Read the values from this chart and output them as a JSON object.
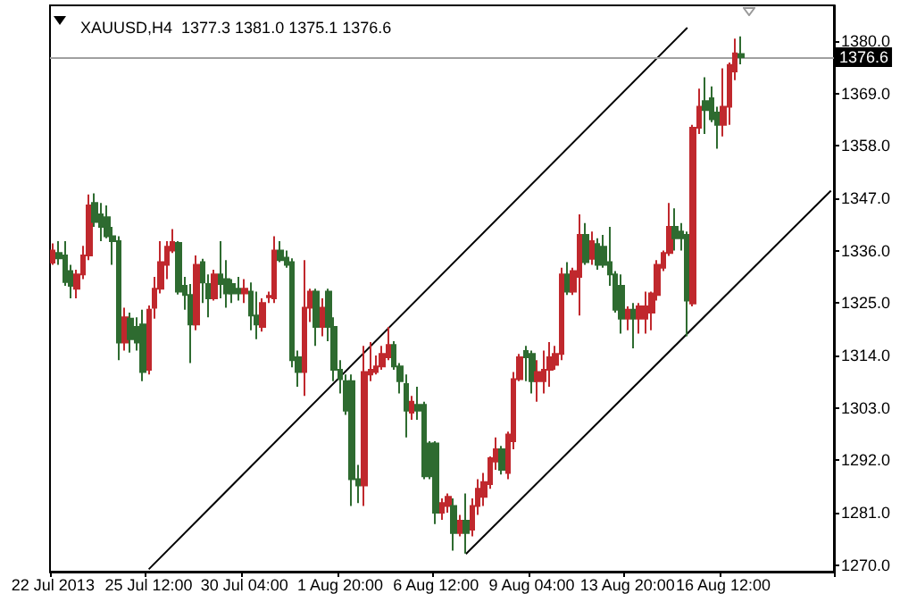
{
  "chart_data": {
    "type": "candlestick",
    "title": "XAUUSD,H4  1377.3 1381.0 1375.1 1376.6",
    "categories": [
      "22 Jul 2013",
      null,
      null,
      null,
      null,
      null,
      null,
      null,
      null,
      null,
      null,
      null,
      null,
      null,
      null,
      null,
      "25 Jul 12:00",
      null,
      null,
      null,
      null,
      null,
      null,
      null,
      null,
      null,
      null,
      null,
      null,
      null,
      null,
      null,
      "30 Jul 04:00",
      null,
      null,
      null,
      null,
      null,
      null,
      null,
      null,
      null,
      null,
      null,
      null,
      null,
      null,
      null,
      "1 Aug 20:00",
      null,
      null,
      null,
      null,
      null,
      null,
      null,
      null,
      null,
      null,
      null,
      null,
      null,
      null,
      null,
      "6 Aug 12:00",
      null,
      null,
      null,
      null,
      null,
      null,
      null,
      null,
      null,
      null,
      null,
      null,
      null,
      null,
      null,
      "9 Aug 04:00",
      null,
      null,
      null,
      null,
      null,
      null,
      null,
      null,
      null,
      null,
      null,
      null,
      null,
      null,
      null,
      "13 Aug 20:00",
      null,
      null,
      null,
      null,
      null,
      null,
      null,
      null,
      null,
      null,
      null,
      null,
      null,
      null,
      null,
      "16 Aug 12:00",
      null,
      null,
      null,
      null,
      null,
      null,
      null,
      null,
      null,
      null,
      null,
      null,
      null,
      null,
      null,
      null,
      null,
      null
    ],
    "ohlc": [
      [
        1333.5,
        1337.5,
        1333,
        1336
      ],
      [
        1335.5,
        1338,
        1333,
        1334.4
      ],
      [
        1335,
        1338,
        1328.6,
        1329.4
      ],
      [
        1331.7,
        1333,
        1326,
        1328.6
      ],
      [
        1328,
        1332,
        1326,
        1331
      ],
      [
        1331,
        1337,
        1330,
        1335
      ],
      [
        1335,
        1347.8,
        1334,
        1345.5
      ],
      [
        1346,
        1348,
        1341,
        1342
      ],
      [
        1343.6,
        1346,
        1338,
        1341
      ],
      [
        1343,
        1345.5,
        1338.6,
        1339
      ],
      [
        1339,
        1341,
        1333,
        1338
      ],
      [
        1338,
        1339,
        1313,
        1316.7
      ],
      [
        1316.7,
        1324,
        1315,
        1322
      ],
      [
        1321.7,
        1323,
        1314.6,
        1317.4
      ],
      [
        1320,
        1322,
        1315,
        1316.7
      ],
      [
        1320.5,
        1323.6,
        1308.6,
        1310.5
      ],
      [
        1311,
        1324.5,
        1310,
        1323.6
      ],
      [
        1324,
        1330.5,
        1321.7,
        1328
      ],
      [
        1328,
        1338,
        1327,
        1333.6
      ],
      [
        1333,
        1338,
        1330,
        1336.8
      ],
      [
        1336,
        1340.5,
        1335.5,
        1337.8
      ],
      [
        1337.6,
        1338,
        1326.8,
        1327.4
      ],
      [
        1328.6,
        1330.5,
        1323.6,
        1326.7
      ],
      [
        1326.7,
        1329,
        1312.4,
        1320.5
      ],
      [
        1320.5,
        1335,
        1319.3,
        1333
      ],
      [
        1333.6,
        1334.3,
        1325,
        1329.3
      ],
      [
        1329,
        1331,
        1322,
        1326
      ],
      [
        1326,
        1332,
        1325.5,
        1331
      ],
      [
        1331,
        1338,
        1326,
        1329
      ],
      [
        1330,
        1334,
        1324,
        1327
      ],
      [
        1329,
        1330,
        1325,
        1327
      ],
      [
        1328,
        1330.5,
        1325.5,
        1327
      ],
      [
        1327,
        1330,
        1325,
        1328
      ],
      [
        1327.4,
        1329.3,
        1319.3,
        1322.4
      ],
      [
        1322.4,
        1327.4,
        1317.4,
        1320.5
      ],
      [
        1320,
        1326,
        1319,
        1325
      ],
      [
        1326.2,
        1327.4,
        1325,
        1326.5
      ],
      [
        1326,
        1339,
        1325,
        1336
      ],
      [
        1336,
        1338,
        1333.6,
        1334
      ],
      [
        1334.5,
        1336,
        1332.4,
        1333
      ],
      [
        1333.6,
        1334.4,
        1311.5,
        1313
      ],
      [
        1313.6,
        1315,
        1307.4,
        1310.5
      ],
      [
        1310.5,
        1334,
        1305.5,
        1324
      ],
      [
        1324,
        1328,
        1321,
        1327.4
      ],
      [
        1327.4,
        1328,
        1316,
        1320
      ],
      [
        1320,
        1326,
        1318,
        1324
      ],
      [
        1327.4,
        1328,
        1317,
        1320
      ],
      [
        1320,
        1322,
        1308.6,
        1311
      ],
      [
        1311,
        1313,
        1306,
        1309
      ],
      [
        1308.6,
        1310,
        1301.5,
        1302.4
      ],
      [
        1308.6,
        1310,
        1282.4,
        1288
      ],
      [
        1288,
        1291,
        1283,
        1286.7
      ],
      [
        1286.7,
        1316,
        1282.4,
        1310.5
      ],
      [
        1310,
        1316.8,
        1308.6,
        1311
      ],
      [
        1310.5,
        1314,
        1310,
        1311.7
      ],
      [
        1311.7,
        1316,
        1311,
        1314.3
      ],
      [
        1313.6,
        1320,
        1313,
        1316.2
      ],
      [
        1316.2,
        1317,
        1311,
        1311.7
      ],
      [
        1311.7,
        1312.4,
        1306,
        1308.6
      ],
      [
        1308,
        1310,
        1296.8,
        1302.4
      ],
      [
        1302,
        1305.5,
        1300.5,
        1304.3
      ],
      [
        1303.6,
        1307.4,
        1300.5,
        1302.4
      ],
      [
        1303.6,
        1304.3,
        1288,
        1288.6
      ],
      [
        1295.5,
        1296,
        1288,
        1288.6
      ],
      [
        1295.5,
        1296,
        1278.6,
        1281
      ],
      [
        1281,
        1284,
        1279.5,
        1283
      ],
      [
        1282.4,
        1285,
        1281,
        1284.3
      ],
      [
        1282.4,
        1284,
        1273,
        1276.7
      ],
      [
        1276.7,
        1280.5,
        1276,
        1279.3
      ],
      [
        1279.3,
        1285,
        1272.4,
        1276.7
      ],
      [
        1277.4,
        1284,
        1276,
        1282.4
      ],
      [
        1282.4,
        1288,
        1280.5,
        1286
      ],
      [
        1284.3,
        1289.3,
        1282.4,
        1287.4
      ],
      [
        1287,
        1292.8,
        1286,
        1292.4
      ],
      [
        1291.7,
        1296.8,
        1290,
        1294.3
      ],
      [
        1294.3,
        1295,
        1289,
        1290
      ],
      [
        1289.3,
        1298,
        1288,
        1297.4
      ],
      [
        1296,
        1310.5,
        1294.3,
        1309
      ],
      [
        1309,
        1314.3,
        1308.6,
        1313.6
      ],
      [
        1314.9,
        1316,
        1308.6,
        1313.6
      ],
      [
        1314.3,
        1315,
        1306,
        1308.6
      ],
      [
        1308.6,
        1313,
        1304.3,
        1310.5
      ],
      [
        1308.6,
        1315,
        1306,
        1311
      ],
      [
        1311,
        1316.8,
        1307.4,
        1313.6
      ],
      [
        1312,
        1316,
        1311,
        1314.3
      ],
      [
        1314.3,
        1332.4,
        1313,
        1331
      ],
      [
        1331,
        1333.6,
        1326.7,
        1327.4
      ],
      [
        1327.4,
        1332.4,
        1326.7,
        1331.7
      ],
      [
        1330.5,
        1343.6,
        1322.4,
        1339.3
      ],
      [
        1339.3,
        1341.8,
        1333,
        1333.6
      ],
      [
        1334.3,
        1340,
        1333,
        1338
      ],
      [
        1337.4,
        1338.6,
        1332,
        1333
      ],
      [
        1336.8,
        1339.3,
        1332.4,
        1333
      ],
      [
        1333.6,
        1341,
        1328.6,
        1331
      ],
      [
        1331,
        1331.7,
        1323,
        1323.6
      ],
      [
        1328.6,
        1331,
        1318.6,
        1321.7
      ],
      [
        1321.7,
        1324.3,
        1319.3,
        1323.6
      ],
      [
        1323.6,
        1325,
        1315.5,
        1321.7
      ],
      [
        1321.7,
        1325,
        1318.6,
        1324.3
      ],
      [
        1321.7,
        1327.4,
        1318.6,
        1324.3
      ],
      [
        1323,
        1327.4,
        1319.3,
        1327
      ],
      [
        1326.7,
        1334,
        1325.5,
        1333
      ],
      [
        1332.4,
        1336,
        1331.7,
        1335.5
      ],
      [
        1335.5,
        1346,
        1334.9,
        1341
      ],
      [
        1341,
        1344.9,
        1336,
        1338.6
      ],
      [
        1340,
        1341.8,
        1336,
        1338.6
      ],
      [
        1339.3,
        1340,
        1318,
        1325.5
      ],
      [
        1324.9,
        1362.4,
        1324.3,
        1361.8
      ],
      [
        1361.8,
        1370,
        1360.5,
        1366.2
      ],
      [
        1367.4,
        1372.4,
        1360.5,
        1365.5
      ],
      [
        1368,
        1370.5,
        1363,
        1363.6
      ],
      [
        1365,
        1366.2,
        1357.4,
        1362.4
      ],
      [
        1362.4,
        1374.3,
        1360,
        1366.2
      ],
      [
        1366.2,
        1375.5,
        1362.4,
        1375
      ],
      [
        1373.6,
        1380.5,
        1371.8,
        1377.4
      ],
      [
        1377.3,
        1381,
        1375.1,
        1376.6
      ],
      null,
      null,
      null,
      null,
      null,
      null,
      null,
      null,
      null,
      null,
      null,
      null,
      null,
      null,
      null
    ],
    "colors": [
      "#c0282d",
      "#2e6b30",
      "#2e6b30",
      "#2e6b30",
      "#c0282d",
      "#c0282d",
      "#c0282d",
      "#2e6b30",
      "#2e6b30",
      "#2e6b30",
      "#2e6b30",
      "#2e6b30",
      "#c0282d",
      "#2e6b30",
      "#2e6b30",
      "#2e6b30",
      "#c0282d",
      "#c0282d",
      "#c0282d",
      "#c0282d",
      "#c0282d",
      "#2e6b30",
      "#2e6b30",
      "#2e6b30",
      "#c0282d",
      "#2e6b30",
      "#2e6b30",
      "#c0282d",
      "#2e6b30",
      "#2e6b30",
      "#2e6b30",
      "#2e6b30",
      "#c0282d",
      "#2e6b30",
      "#2e6b30",
      "#c0282d",
      "#c0282d",
      "#c0282d",
      "#2e6b30",
      "#2e6b30",
      "#2e6b30",
      "#2e6b30",
      "#c0282d",
      "#c0282d",
      "#2e6b30",
      "#c0282d",
      "#2e6b30",
      "#2e6b30",
      "#2e6b30",
      "#2e6b30",
      "#2e6b30",
      "#2e6b30",
      "#c0282d",
      "#c0282d",
      "#c0282d",
      "#c0282d",
      "#c0282d",
      "#2e6b30",
      "#2e6b30",
      "#2e6b30",
      "#c0282d",
      "#2e6b30",
      "#2e6b30",
      "#2e6b30",
      "#2e6b30",
      "#c0282d",
      "#c0282d",
      "#2e6b30",
      "#c0282d",
      "#2e6b30",
      "#c0282d",
      "#c0282d",
      "#c0282d",
      "#c0282d",
      "#c0282d",
      "#2e6b30",
      "#c0282d",
      "#c0282d",
      "#c0282d",
      "#2e6b30",
      "#2e6b30",
      "#c0282d",
      "#c0282d",
      "#c0282d",
      "#c0282d",
      "#c0282d",
      "#2e6b30",
      "#c0282d",
      "#c0282d",
      "#2e6b30",
      "#c0282d",
      "#2e6b30",
      "#2e6b30",
      "#2e6b30",
      "#2e6b30",
      "#2e6b30",
      "#c0282d",
      "#2e6b30",
      "#c0282d",
      "#c0282d",
      "#c0282d",
      "#c0282d",
      "#c0282d",
      "#c0282d",
      "#2e6b30",
      "#2e6b30",
      "#2e6b30",
      "#c0282d",
      "#c0282d",
      "#2e6b30",
      "#2e6b30",
      "#2e6b30",
      "#c0282d",
      "#c0282d",
      "#c0282d",
      "#2e6b30",
      null,
      null,
      null,
      null,
      null,
      null,
      null,
      null,
      null,
      null,
      null,
      null,
      null,
      null,
      null
    ],
    "series": [
      {
        "type": "line",
        "color": "#000000",
        "values": [
          null,
          null,
          null,
          null,
          null,
          null,
          null,
          null,
          null,
          null,
          null,
          null,
          null,
          null,
          null,
          null,
          1269.1,
          null,
          null,
          null,
          null,
          null,
          null,
          null,
          null,
          null,
          null,
          null,
          null,
          null,
          null,
          null,
          null,
          null,
          null,
          null,
          null,
          null,
          null,
          null,
          null,
          null,
          null,
          null,
          null,
          null,
          null,
          null,
          null,
          null,
          null,
          null,
          null,
          null,
          null,
          null,
          null,
          null,
          null,
          null,
          null,
          null,
          null,
          null,
          null,
          null,
          null,
          null,
          null,
          null,
          null,
          null,
          null,
          null,
          null,
          null,
          null,
          null,
          null,
          null,
          null,
          null,
          null,
          null,
          null,
          null,
          null,
          null,
          null,
          null,
          null,
          null,
          null,
          null,
          null,
          null,
          null,
          null,
          null,
          null,
          null,
          null,
          null,
          null,
          null,
          null,
          1382.8,
          null,
          null,
          null,
          null,
          null,
          null,
          null,
          null,
          null,
          null,
          null,
          null,
          null,
          null,
          null,
          null,
          null,
          null,
          null,
          null,
          null,
          null,
          null,
          null
        ]
      },
      {
        "type": "line",
        "color": "#000000",
        "values": [
          null,
          null,
          null,
          null,
          null,
          null,
          null,
          null,
          null,
          null,
          null,
          null,
          null,
          null,
          null,
          null,
          null,
          null,
          null,
          null,
          null,
          null,
          null,
          null,
          null,
          null,
          null,
          null,
          null,
          null,
          null,
          null,
          null,
          null,
          null,
          null,
          null,
          null,
          null,
          null,
          null,
          null,
          null,
          null,
          null,
          null,
          null,
          null,
          null,
          null,
          null,
          null,
          null,
          null,
          null,
          null,
          null,
          null,
          null,
          null,
          null,
          null,
          null,
          null,
          null,
          null,
          null,
          null,
          null,
          1272.3,
          null,
          null,
          null,
          null,
          null,
          null,
          null,
          null,
          null,
          null,
          null,
          null,
          null,
          null,
          null,
          null,
          null,
          null,
          null,
          null,
          null,
          null,
          null,
          null,
          null,
          null,
          null,
          null,
          null,
          null,
          null,
          null,
          null,
          null,
          null,
          null,
          null,
          null,
          null,
          null,
          null,
          null,
          null,
          null,
          null,
          null,
          null,
          null,
          null,
          null,
          null,
          null,
          null,
          null,
          null,
          null,
          null,
          null,
          null,
          null,
          1348.6
        ]
      }
    ],
    "ylim": [
      1268.6,
      1387.5
    ],
    "yticks": [
      {
        "value": 1270,
        "label": "1270.0"
      },
      {
        "value": 1281,
        "label": "1281.0"
      },
      {
        "value": 1292,
        "label": "1292.0"
      },
      {
        "value": 1303,
        "label": "1303.0"
      },
      {
        "value": 1314,
        "label": "1314.0"
      },
      {
        "value": 1325,
        "label": "1325.0"
      },
      {
        "value": 1336,
        "label": "1336.0"
      },
      {
        "value": 1347,
        "label": "1347.0"
      },
      {
        "value": 1358,
        "label": "1358.0"
      },
      {
        "value": 1369,
        "label": "1369.0"
      },
      {
        "value": 1380,
        "label": "1380.0"
      }
    ],
    "ref_lines": [
      {
        "axis": "y",
        "value": 1376.6,
        "label": "1376.6",
        "color": "#a0a0a0",
        "line_style": "solid"
      }
    ],
    "grid": false,
    "marker": "none",
    "line_style": "solid"
  }
}
